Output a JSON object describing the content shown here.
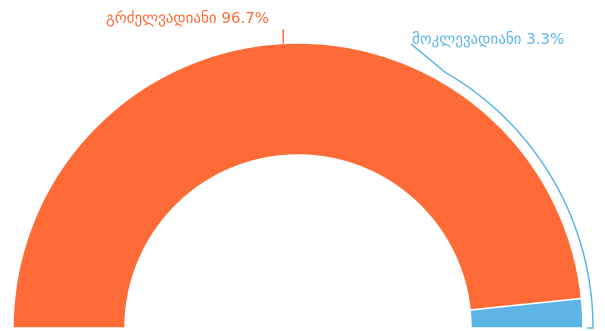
{
  "chart_data": {
    "type": "pie",
    "variant": "semi-donut",
    "slices": [
      {
        "label": "გრძელვადიანი 96.7%",
        "value": 96.7,
        "color": "#ff6b37"
      },
      {
        "label": "მოკლევადიანი 3.3%",
        "value": 3.3,
        "color": "#5db5e6"
      }
    ]
  }
}
